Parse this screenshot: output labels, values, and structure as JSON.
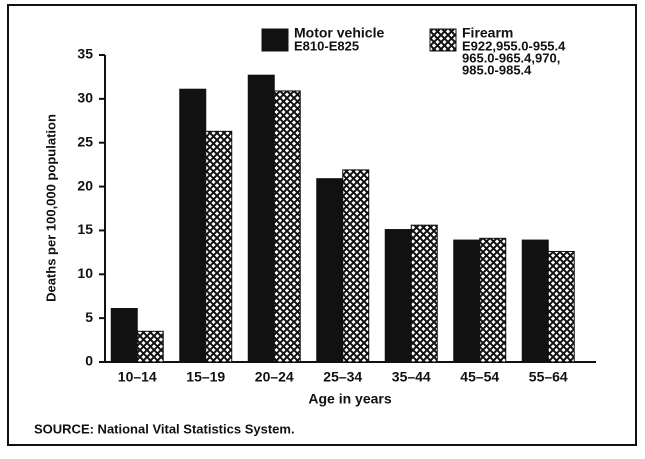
{
  "chart_data": {
    "type": "bar",
    "categories": [
      "10–14",
      "15–19",
      "20–24",
      "25–34",
      "35–44",
      "45–54",
      "55–64"
    ],
    "series": [
      {
        "name": "Motor vehicle",
        "codes": [
          "E810-E825"
        ],
        "color": "#111111",
        "hatch": false,
        "values": [
          6.1,
          31.1,
          32.7,
          20.9,
          15.1,
          13.9,
          13.9
        ]
      },
      {
        "name": "Firearm",
        "codes": [
          "E922,955.0-955.4",
          "965.0-965.4,970,",
          "985.0-985.4"
        ],
        "color": "#111111",
        "hatch": true,
        "values": [
          3.5,
          26.3,
          30.9,
          21.9,
          15.6,
          14.1,
          12.6
        ]
      }
    ],
    "ylim": [
      0,
      35
    ],
    "yticks": [
      0,
      5,
      10,
      15,
      20,
      25,
      30,
      35
    ],
    "y_label": "Deaths per 100,000 population",
    "x_label": "Age in years",
    "source": "SOURCE: National Vital Statistics System."
  }
}
